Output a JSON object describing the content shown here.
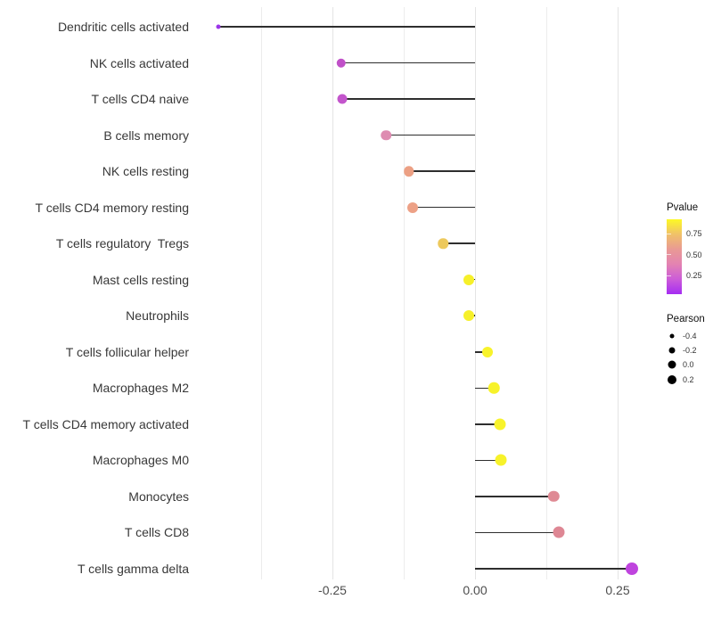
{
  "chart_data": {
    "type": "scatter",
    "variant": "lollipop",
    "orientation": "horizontal",
    "title": "",
    "xlabel": "",
    "ylabel": "",
    "grid": true,
    "x_axis": {
      "range": [
        -0.47,
        0.33
      ],
      "ticks": [
        {
          "value": -0.25,
          "label": "-0.25"
        },
        {
          "value": 0.0,
          "label": "0.00"
        },
        {
          "value": 0.25,
          "label": "0.25"
        }
      ],
      "minor_gridlines": [
        -0.375,
        -0.125,
        0.125
      ]
    },
    "points": [
      {
        "label": "Dendritic cells activated",
        "pearson": -0.45,
        "color": "#9b35e8",
        "size": 5
      },
      {
        "label": "NK cells activated",
        "pearson": -0.235,
        "color": "#c050c8",
        "size": 10.5
      },
      {
        "label": "T cells CD4 naive",
        "pearson": -0.233,
        "color": "#c355cc",
        "size": 11
      },
      {
        "label": "B cells memory",
        "pearson": -0.156,
        "color": "#de8cb1",
        "size": 11.5
      },
      {
        "label": "NK cells resting",
        "pearson": -0.116,
        "color": "#eca084",
        "size": 11.5
      },
      {
        "label": "T cells CD4 memory resting",
        "pearson": -0.109,
        "color": "#eda186",
        "size": 12
      },
      {
        "label": "T cells regulatory  Tregs",
        "pearson": -0.056,
        "color": "#edc95d",
        "size": 11.5
      },
      {
        "label": "Mast cells resting",
        "pearson": -0.011,
        "color": "#f6f02a",
        "size": 12
      },
      {
        "label": "Neutrophils",
        "pearson": -0.011,
        "color": "#f6f02a",
        "size": 12
      },
      {
        "label": "T cells follicular helper",
        "pearson": 0.022,
        "color": "#f8f32b",
        "size": 12
      },
      {
        "label": "Macrophages M2",
        "pearson": 0.033,
        "color": "#f7f22a",
        "size": 12.5
      },
      {
        "label": "T cells CD4 memory activated",
        "pearson": 0.044,
        "color": "#f8f32b",
        "size": 13
      },
      {
        "label": "Macrophages M0",
        "pearson": 0.045,
        "color": "#f7f22a",
        "size": 13
      },
      {
        "label": "Monocytes",
        "pearson": 0.138,
        "color": "#df8a94",
        "size": 12.5
      },
      {
        "label": "T cells CD8",
        "pearson": 0.147,
        "color": "#de8794",
        "size": 13
      },
      {
        "label": "T cells gamma delta",
        "pearson": 0.275,
        "color": "#bf44de",
        "size": 14
      }
    ],
    "legend": {
      "pvalue": {
        "title": "Pvalue",
        "gradient_top_to_bottom": [
          "#fdf925",
          "#f0c169",
          "#e99a94",
          "#e383b2",
          "#cc5cd8",
          "#a52df2"
        ],
        "value_range_top_to_bottom": [
          0.92,
          0.03
        ],
        "ticks": [
          {
            "value": 0.75,
            "label": "0.75"
          },
          {
            "value": 0.5,
            "label": "0.50"
          },
          {
            "value": 0.25,
            "label": "0.25"
          }
        ]
      },
      "pearson": {
        "title": "Pearson",
        "items": [
          {
            "value": -0.4,
            "label": "-0.4",
            "size": 5
          },
          {
            "value": -0.2,
            "label": "-0.2",
            "size": 7
          },
          {
            "value": 0.0,
            "label": "0.0",
            "size": 9
          },
          {
            "value": 0.2,
            "label": "0.2",
            "size": 10
          }
        ]
      }
    }
  }
}
